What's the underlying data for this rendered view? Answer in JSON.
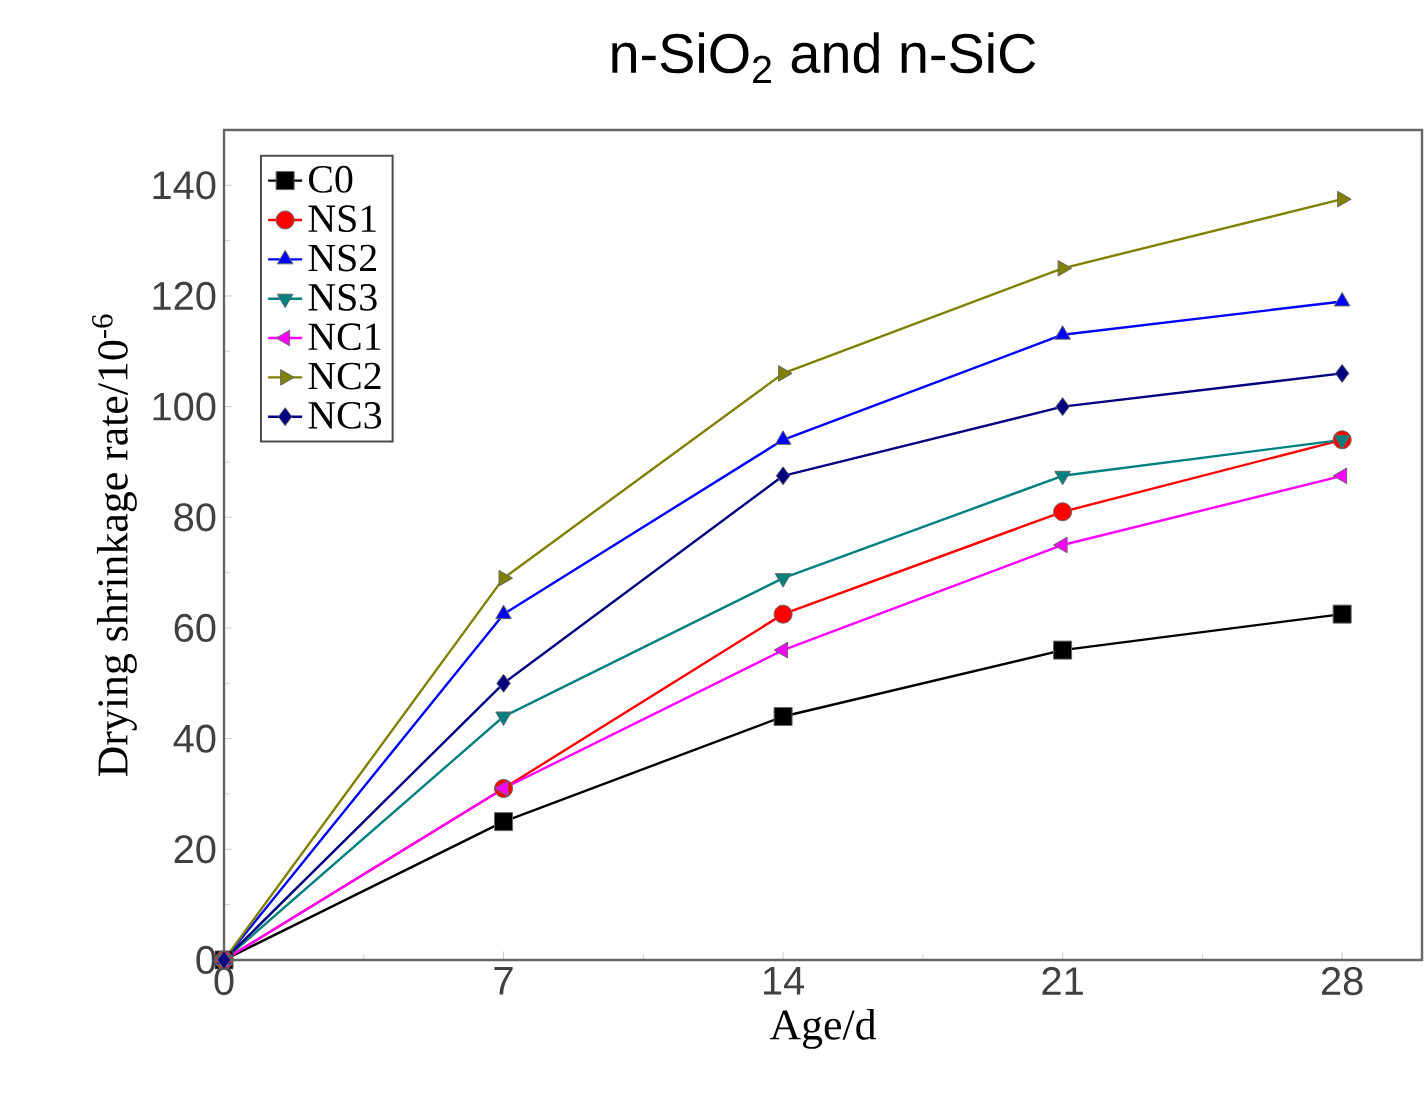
{
  "chart_data": {
    "type": "line",
    "title": "n-SiO$_{2}$ and n-SiC",
    "xlabel": "Age/d",
    "ylabel": "Drying shrinkage rate/10$^{-6}$",
    "x": [
      0,
      7,
      14,
      21,
      28
    ],
    "series": [
      {
        "name": "C0",
        "color": "#000000",
        "marker": "square",
        "values": [
          0,
          25,
          44,
          56,
          62.5
        ]
      },
      {
        "name": "NS1",
        "color": "#ff0000",
        "marker": "circle",
        "values": [
          0,
          31,
          62.5,
          81,
          94
        ]
      },
      {
        "name": "NS2",
        "color": "#0000ff",
        "marker": "triangle",
        "values": [
          0,
          62.5,
          94,
          113,
          119
        ]
      },
      {
        "name": "NS3",
        "color": "#008080",
        "marker": "triangle-down",
        "values": [
          0,
          44,
          69,
          87.5,
          94
        ]
      },
      {
        "name": "NC1",
        "color": "#ff00ff",
        "marker": "triangle-left",
        "values": [
          0,
          31,
          56,
          75,
          87.5
        ]
      },
      {
        "name": "NC2",
        "color": "#808000",
        "marker": "triangle-right",
        "values": [
          0,
          69,
          106,
          125,
          137.5
        ]
      },
      {
        "name": "NC3",
        "color": "#000080",
        "marker": "diamond",
        "values": [
          0,
          50,
          87.5,
          100,
          106
        ]
      }
    ],
    "xlim": [
      0,
      30
    ],
    "ylim": [
      0,
      150
    ],
    "xticks": [
      0,
      7,
      14,
      21,
      28
    ],
    "yticks": [
      0,
      20,
      40,
      60,
      80,
      100,
      120,
      140
    ],
    "legend": "top left",
    "grid": false,
    "line_style": "solid"
  }
}
